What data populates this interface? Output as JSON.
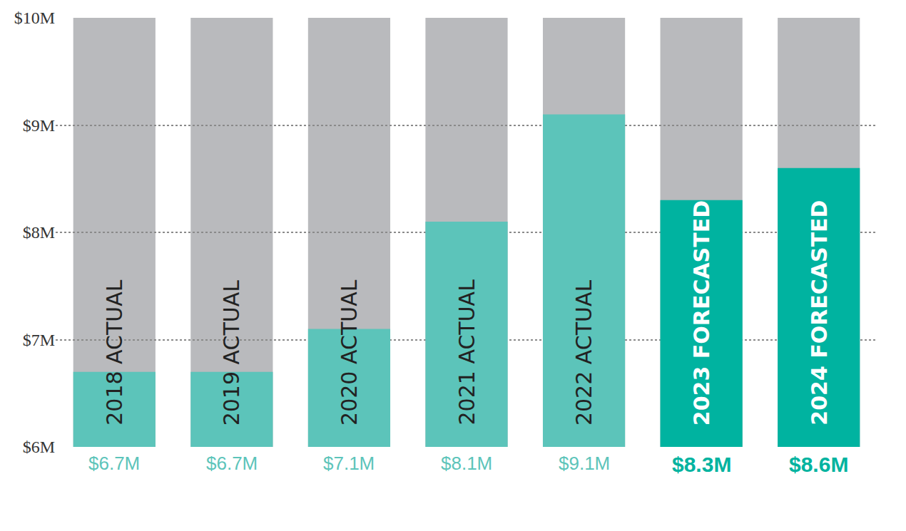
{
  "chart_data": {
    "type": "bar",
    "categories": [
      "2018 ACTUAL",
      "2019 ACTUAL",
      "2020 ACTUAL",
      "2021 ACTUAL",
      "2022 ACTUAL",
      "2023 FORECASTED",
      "2024 FORECASTED"
    ],
    "values": [
      6.7,
      6.7,
      7.1,
      8.1,
      9.1,
      8.3,
      8.6
    ],
    "value_labels": [
      "$6.7M",
      "$6.7M",
      "$7.1M",
      "$8.1M",
      "$9.1M",
      "$8.3M",
      "$8.6M"
    ],
    "colors": [
      "#5cc4ba",
      "#5cc4ba",
      "#5cc4ba",
      "#5cc4ba",
      "#5cc4ba",
      "#00b3a0",
      "#00b3a0"
    ],
    "ylim": [
      6,
      10
    ],
    "yticks": [
      {
        "value": 6,
        "label": "$6M"
      },
      {
        "value": 7,
        "label": "$7M"
      },
      {
        "value": 8,
        "label": "$8M"
      },
      {
        "value": 9,
        "label": "$9M"
      },
      {
        "value": 10,
        "label": "$10M"
      }
    ],
    "grid": true,
    "data_labels": true,
    "tick_labels": "y"
  }
}
